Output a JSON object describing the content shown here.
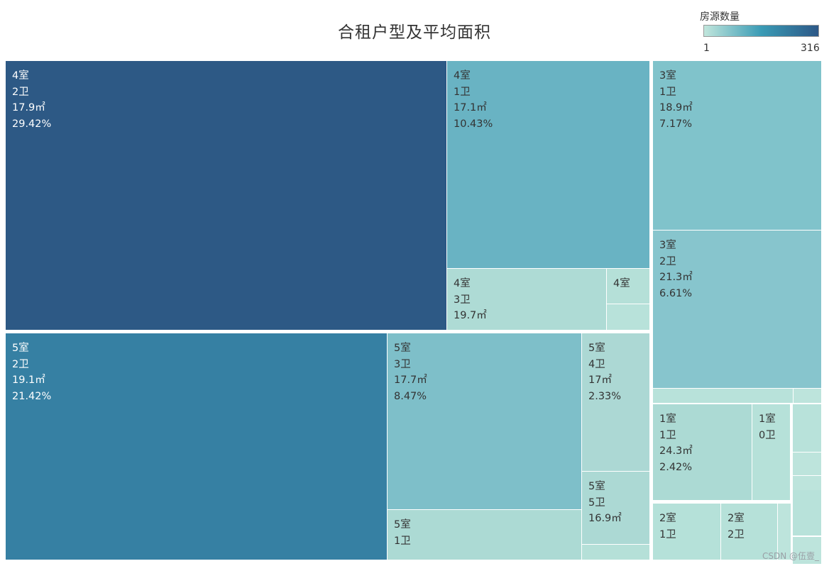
{
  "chart_data": {
    "type": "treemap",
    "title": "合租户型及平均面积",
    "legend": {
      "title": "房源数量",
      "min": "1",
      "max": "316",
      "colors": [
        "#c1e6dc",
        "#3a9bb5",
        "#2d5887"
      ]
    },
    "nodes": [
      {
        "rooms": "4室",
        "baths": "2卫",
        "area": "17.9㎡",
        "pct": "29.42%",
        "share": 29.42,
        "color": "#2d5985"
      },
      {
        "rooms": "4室",
        "baths": "1卫",
        "area": "17.1㎡",
        "pct": "10.43%",
        "share": 10.43,
        "color": "#69b3c3"
      },
      {
        "rooms": "4室",
        "baths": "3卫",
        "area": "19.7㎡",
        "pct": "",
        "share": 1.6,
        "color": "#aedbd5"
      },
      {
        "rooms": "4室",
        "baths": "",
        "area": "",
        "pct": "",
        "share": 0.4,
        "color": "#b5e0d8"
      },
      {
        "rooms": "",
        "baths": "",
        "area": "",
        "pct": "",
        "share": 0.3,
        "color": "#b8e2da"
      },
      {
        "rooms": "5室",
        "baths": "2卫",
        "area": "19.1㎡",
        "pct": "21.42%",
        "share": 21.42,
        "color": "#3680a3"
      },
      {
        "rooms": "5室",
        "baths": "3卫",
        "area": "17.7㎡",
        "pct": "8.47%",
        "share": 8.47,
        "color": "#7ebfc9"
      },
      {
        "rooms": "5室",
        "baths": "1卫",
        "area": "",
        "pct": "",
        "share": 1.7,
        "color": "#acdad4"
      },
      {
        "rooms": "5室",
        "baths": "4卫",
        "area": "17㎡",
        "pct": "2.33%",
        "share": 2.33,
        "color": "#acd8d4"
      },
      {
        "rooms": "5室",
        "baths": "5卫",
        "area": "16.9㎡",
        "pct": "",
        "share": 1.3,
        "color": "#acd9d4"
      },
      {
        "rooms": "",
        "baths": "",
        "area": "",
        "pct": "",
        "share": 0.3,
        "color": "#b5e0d8"
      },
      {
        "rooms": "3室",
        "baths": "1卫",
        "area": "18.9㎡",
        "pct": "7.17%",
        "share": 7.17,
        "color": "#80c3cb"
      },
      {
        "rooms": "3室",
        "baths": "2卫",
        "area": "21.3㎡",
        "pct": "6.61%",
        "share": 6.61,
        "color": "#87c5cd"
      },
      {
        "rooms": "",
        "baths": "",
        "area": "",
        "pct": "",
        "share": 0.3,
        "color": "#b8e2da"
      },
      {
        "rooms": "",
        "baths": "",
        "area": "",
        "pct": "",
        "share": 0.1,
        "color": "#bde4dc"
      },
      {
        "rooms": "1室",
        "baths": "1卫",
        "area": "24.3㎡",
        "pct": "2.42%",
        "share": 2.42,
        "color": "#acdad4"
      },
      {
        "rooms": "1室",
        "baths": "0卫",
        "area": "",
        "pct": "",
        "share": 1.0,
        "color": "#b6e1d9"
      },
      {
        "rooms": "2室",
        "baths": "1卫",
        "area": "",
        "pct": "",
        "share": 1.0,
        "color": "#b5e1d9"
      },
      {
        "rooms": "2室",
        "baths": "2卫",
        "area": "",
        "pct": "",
        "share": 0.8,
        "color": "#b6e1d9"
      },
      {
        "rooms": "",
        "baths": "",
        "area": "",
        "pct": "",
        "share": 0.15,
        "color": "#bde4dc"
      },
      {
        "rooms": "",
        "baths": "",
        "area": "",
        "pct": "",
        "share": 0.4,
        "color": "#b8e2da"
      },
      {
        "rooms": "",
        "baths": "",
        "area": "",
        "pct": "",
        "share": 0.2,
        "color": "#bde4dc"
      },
      {
        "rooms": "",
        "baths": "",
        "area": "",
        "pct": "",
        "share": 0.1,
        "color": "#bde4dc"
      },
      {
        "rooms": "",
        "baths": "",
        "area": "",
        "pct": "",
        "share": 0.4,
        "color": "#b8e2da"
      },
      {
        "rooms": "",
        "baths": "",
        "area": "",
        "pct": "",
        "share": 0.1,
        "color": "#bde4dc"
      },
      {
        "rooms": "",
        "baths": "",
        "area": "",
        "pct": "",
        "share": 0.1,
        "color": "#bde4dc"
      }
    ]
  },
  "watermark": "CSDN @伍壹_"
}
